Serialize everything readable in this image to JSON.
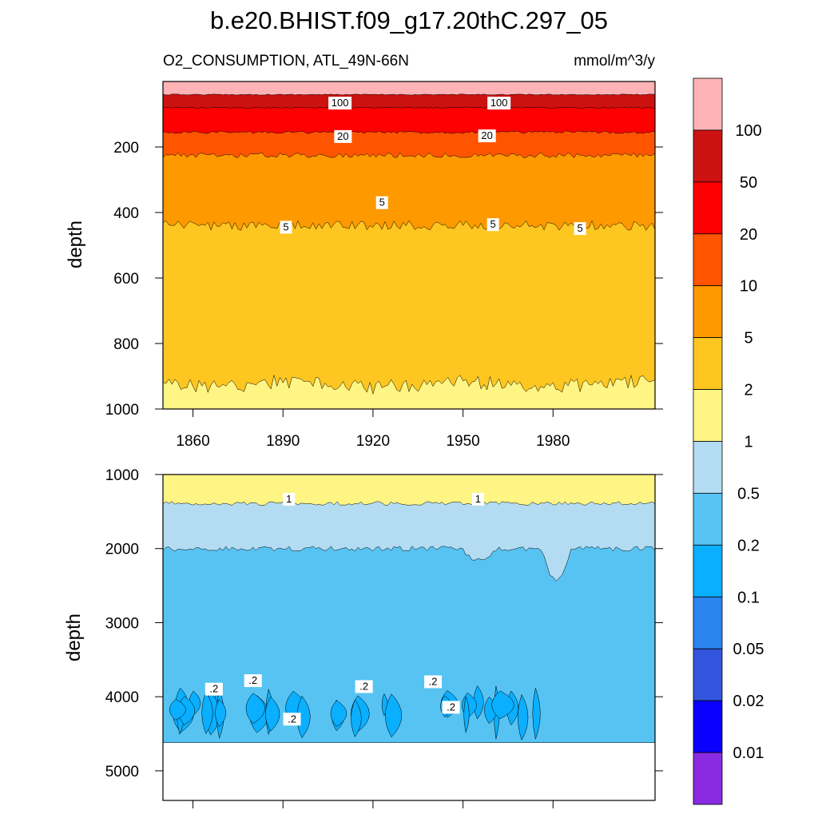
{
  "title": "b.e20.BHIST.f09_g17.20thC.297_05",
  "subtitle_left": "O2_CONSUMPTION, ATL_49N-66N",
  "subtitle_right": "mmol/m^3/y",
  "chart_data": [
    {
      "type": "contour",
      "panel": "upper",
      "ylabel": "depth",
      "x_range": [
        1850,
        2014
      ],
      "y_range": [
        0,
        1000
      ],
      "y_inverted": true,
      "x_ticks": [
        "1860",
        "1890",
        "1920",
        "1950",
        "1980"
      ],
      "y_ticks": [
        "200",
        "400",
        "600",
        "800",
        "1000"
      ],
      "contour_depths_mean": [
        {
          "level": 100,
          "depth": 40
        },
        {
          "level": 50,
          "depth": 80
        },
        {
          "level": 20,
          "depth": 155
        },
        {
          "level": 10,
          "depth": 225
        },
        {
          "level": 5,
          "depth": 440
        },
        {
          "level": 2,
          "depth": 925
        }
      ],
      "contour_labels": [
        {
          "text": "100",
          "year": 1909,
          "depth": 88
        },
        {
          "text": "100",
          "year": 1962,
          "depth": 88
        },
        {
          "text": "20",
          "year": 1910,
          "depth": 190
        },
        {
          "text": "20",
          "year": 1958,
          "depth": 188
        },
        {
          "text": "5",
          "year": 1891,
          "depth": 467
        },
        {
          "text": "5",
          "year": 1923,
          "depth": 392
        },
        {
          "text": "5",
          "year": 1960,
          "depth": 459
        },
        {
          "text": "5",
          "year": 1989,
          "depth": 471
        }
      ]
    },
    {
      "type": "contour",
      "panel": "lower",
      "ylabel": "depth",
      "x_range": [
        1850,
        2014
      ],
      "y_range": [
        1000,
        5400
      ],
      "y_inverted": true,
      "y_ticks": [
        "1000",
        "2000",
        "3000",
        "4000",
        "5000"
      ],
      "ocean_floor_depth": 4620,
      "contour_depths_mean": [
        {
          "level": 1,
          "depth": 1390
        },
        {
          "level": 0.5,
          "depth": 2000
        },
        {
          "level": 0.2,
          "depth": 3950
        }
      ],
      "contour_labels": [
        {
          "text": "1",
          "year": 1892,
          "depth": 1430
        },
        {
          "text": "1",
          "year": 1955,
          "depth": 1430
        },
        {
          "text": ".2",
          "year": 1867,
          "depth": 3995
        },
        {
          "text": ".2",
          "year": 1880,
          "depth": 3880
        },
        {
          "text": ".2",
          "year": 1917,
          "depth": 3960
        },
        {
          "text": ".2",
          "year": 1940,
          "depth": 3895
        },
        {
          "text": ".2",
          "year": 1946,
          "depth": 4240
        },
        {
          "text": ".2",
          "year": 1893,
          "depth": 4400
        }
      ]
    }
  ],
  "colorbar": {
    "labels": [
      "100",
      "50",
      "20",
      "10",
      "5",
      "2",
      "1",
      "0.5",
      "0.2",
      "0.1",
      "0.05",
      "0.02",
      "0.01"
    ],
    "colors": [
      "#ffb3b6",
      "#cc1111",
      "#ff0000",
      "#ff5500",
      "#ff9900",
      "#fdc620",
      "#fff585",
      "#b3dcf2",
      "#57c3f2",
      "#0aafff",
      "#2a85f0",
      "#3355dd",
      "#0a00ff",
      "#8a2be2"
    ]
  }
}
